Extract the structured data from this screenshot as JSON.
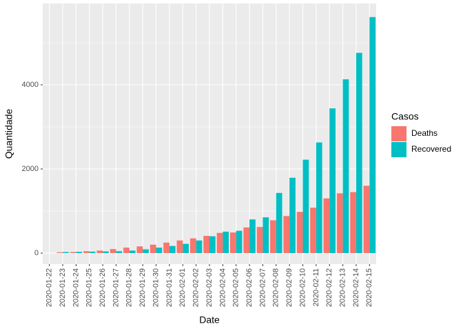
{
  "chart_data": {
    "type": "bar",
    "x_label": "Date",
    "y_label": "Quantidade",
    "legend_title": "Casos",
    "categories": [
      "2020-01-22",
      "2020-01-23",
      "2020-01-24",
      "2020-01-25",
      "2020-01-26",
      "2020-01-27",
      "2020-01-28",
      "2020-01-29",
      "2020-01-30",
      "2020-01-31",
      "2020-02-01",
      "2020-02-02",
      "2020-02-03",
      "2020-02-04",
      "2020-02-05",
      "2020-02-06",
      "2020-02-07",
      "2020-02-08",
      "2020-02-09",
      "2020-02-10",
      "2020-02-11",
      "2020-02-12",
      "2020-02-13",
      "2020-02-14",
      "2020-02-15"
    ],
    "series": [
      {
        "name": "Deaths",
        "color": "#F8766D",
        "values": [
          0,
          20,
          25,
          45,
          60,
          95,
          130,
          160,
          200,
          250,
          300,
          350,
          410,
          480,
          490,
          610,
          620,
          780,
          880,
          980,
          1080,
          1300,
          1420,
          1450,
          1600
        ]
      },
      {
        "name": "Recovered",
        "color": "#00BFC4",
        "values": [
          0,
          25,
          30,
          35,
          40,
          45,
          60,
          90,
          130,
          170,
          220,
          300,
          400,
          510,
          530,
          800,
          850,
          1430,
          1790,
          2220,
          2630,
          3440,
          4130,
          4760,
          5610
        ]
      }
    ],
    "ylim": [
      -262,
      5934
    ],
    "yticks": [
      0,
      2000,
      4000
    ],
    "y_minor_grid": [
      1000,
      3000,
      5000
    ],
    "grid": true,
    "legend": "right"
  }
}
